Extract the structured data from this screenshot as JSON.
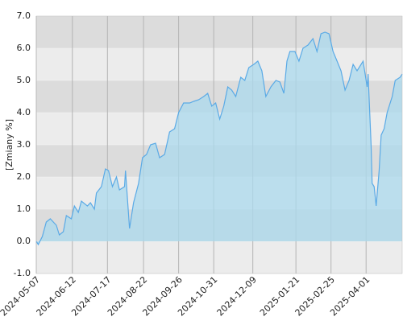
{
  "chart_data": {
    "type": "area",
    "y_label": "[Zmiany %]",
    "x": [
      "2024-05-07",
      "2024-05-09",
      "2024-05-13",
      "2024-05-17",
      "2024-05-21",
      "2024-05-27",
      "2024-05-30",
      "2024-06-03",
      "2024-06-06",
      "2024-06-11",
      "2024-06-14",
      "2024-06-18",
      "2024-06-21",
      "2024-06-27",
      "2024-06-30",
      "2024-07-04",
      "2024-07-06",
      "2024-07-11",
      "2024-07-15",
      "2024-07-18",
      "2024-07-22",
      "2024-07-26",
      "2024-07-29",
      "2024-08-03",
      "2024-08-04",
      "2024-08-08",
      "2024-08-12",
      "2024-08-17",
      "2024-08-21",
      "2024-08-25",
      "2024-08-29",
      "2024-09-03",
      "2024-09-07",
      "2024-09-12",
      "2024-09-17",
      "2024-09-22",
      "2024-09-26",
      "2024-10-01",
      "2024-10-07",
      "2024-10-11",
      "2024-10-16",
      "2024-10-21",
      "2024-10-25",
      "2024-10-29",
      "2024-11-02",
      "2024-11-06",
      "2024-11-10",
      "2024-11-14",
      "2024-11-18",
      "2024-11-22",
      "2024-11-27",
      "2024-12-01",
      "2024-12-05",
      "2024-12-10",
      "2024-12-14",
      "2024-12-18",
      "2024-12-22",
      "2024-12-27",
      "2025-01-01",
      "2025-01-05",
      "2025-01-09",
      "2025-01-12",
      "2025-01-15",
      "2025-01-20",
      "2025-01-24",
      "2025-01-28",
      "2025-02-02",
      "2025-02-07",
      "2025-02-11",
      "2025-02-15",
      "2025-02-19",
      "2025-02-23",
      "2025-02-27",
      "2025-03-03",
      "2025-03-07",
      "2025-03-11",
      "2025-03-15",
      "2025-03-19",
      "2025-03-23",
      "2025-03-29",
      "2025-04-02",
      "2025-04-03",
      "2025-04-06",
      "2025-04-07",
      "2025-04-09",
      "2025-04-11",
      "2025-04-14",
      "2025-04-16",
      "2025-04-19",
      "2025-04-22",
      "2025-04-27",
      "2025-04-30",
      "2025-05-05",
      "2025-05-07"
    ],
    "values": [
      0.0,
      -0.1,
      0.15,
      0.6,
      0.7,
      0.5,
      0.2,
      0.3,
      0.8,
      0.7,
      1.1,
      0.9,
      1.25,
      1.1,
      1.2,
      1.0,
      1.5,
      1.7,
      2.25,
      2.2,
      1.7,
      2.0,
      1.6,
      1.7,
      2.2,
      0.4,
      1.2,
      1.8,
      2.6,
      2.7,
      3.0,
      3.05,
      2.6,
      2.7,
      3.4,
      3.5,
      4.0,
      4.3,
      4.3,
      4.35,
      4.4,
      4.5,
      4.6,
      4.2,
      4.3,
      3.8,
      4.2,
      4.8,
      4.7,
      4.5,
      5.1,
      5.0,
      5.4,
      5.5,
      5.6,
      5.3,
      4.5,
      4.8,
      5.0,
      4.95,
      4.6,
      5.6,
      5.9,
      5.9,
      5.6,
      6.0,
      6.1,
      6.3,
      5.9,
      6.45,
      6.5,
      6.45,
      5.9,
      5.6,
      5.3,
      4.7,
      5.0,
      5.5,
      5.3,
      5.6,
      4.8,
      5.2,
      3.0,
      1.8,
      1.7,
      1.1,
      2.2,
      3.3,
      3.5,
      4.0,
      4.5,
      5.0,
      5.1,
      5.2
    ],
    "color": "#5aaae6",
    "fill": "#abd9ee",
    "xlim": [
      "2024-05-07",
      "2025-05-07"
    ],
    "xticks": [
      "2024-05-07",
      "2024-06-12",
      "2024-07-17",
      "2024-08-22",
      "2024-09-26",
      "2024-10-31",
      "2024-12-09",
      "2025-01-21",
      "2025-02-25",
      "2025-04-01"
    ],
    "ylim": [
      -1,
      7
    ],
    "yticks": [
      {
        "value": -1,
        "label": "-1.0"
      },
      {
        "value": 0,
        "label": "0.0"
      },
      {
        "value": 1,
        "label": "1.0"
      },
      {
        "value": 2,
        "label": "2.0"
      },
      {
        "value": 3,
        "label": "3.0"
      },
      {
        "value": 4,
        "label": "4.0"
      },
      {
        "value": 5,
        "label": "5.0"
      },
      {
        "value": 6,
        "label": "6.0"
      },
      {
        "value": 7,
        "label": "7.0"
      }
    ],
    "grid": true
  }
}
